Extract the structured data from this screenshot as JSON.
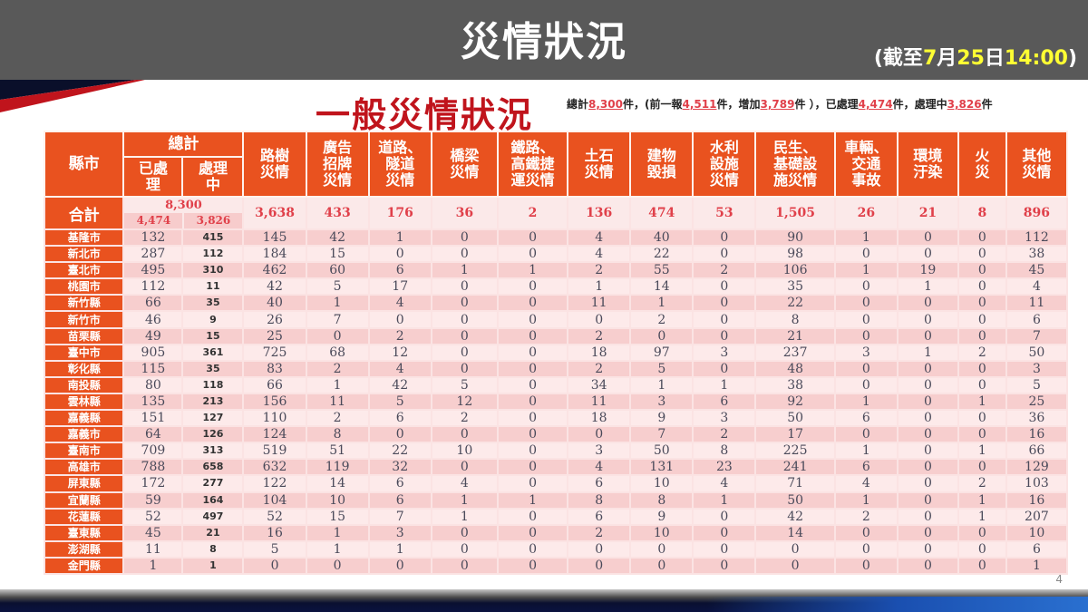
{
  "header": {
    "title": "災情狀況",
    "date_prefix": "(截至",
    "date_month": "7",
    "date_month_label": "月",
    "date_day": "25",
    "date_day_label": "日",
    "date_time": "14:00",
    "date_suffix": ")"
  },
  "subtitle": "一般災情狀況",
  "summary": {
    "total_label": "總計",
    "total": "8,300",
    "unit": "件",
    "prev_label": "，(前一報",
    "prev": "4,511",
    "increase_label": "件，增加",
    "increase": "3,789",
    "close_paren": "件 ），已處理",
    "processed": "4,474",
    "processing_label": "件，處理中",
    "processing": "3,826",
    "end": "件"
  },
  "table": {
    "headers": {
      "county": "縣市",
      "total_group": "總計",
      "processed": [
        "已處",
        "理"
      ],
      "processing": [
        "處理",
        "中"
      ],
      "columns": [
        [
          "路樹",
          "災情"
        ],
        [
          "廣告",
          "招牌",
          "災情"
        ],
        [
          "道路、",
          "隧道",
          "災情"
        ],
        [
          "橋梁",
          "災情"
        ],
        [
          "鐵路、",
          "高鐵捷",
          "運災情"
        ],
        [
          "土石",
          "災情"
        ],
        [
          "建物",
          "毀損"
        ],
        [
          "水利",
          "設施",
          "災情"
        ],
        [
          "民生、",
          "基礎設",
          "施災情"
        ],
        [
          "車輛、",
          "交通",
          "事故"
        ],
        [
          "環境",
          "汙染"
        ],
        [
          "火",
          "災"
        ],
        [
          "其他",
          "災情"
        ]
      ]
    },
    "total_row": {
      "label": "合計",
      "grand_total": "8,300",
      "processed": "4,474",
      "processing": "3,826",
      "values": [
        "3,638",
        "433",
        "176",
        "36",
        "2",
        "136",
        "474",
        "53",
        "1,505",
        "26",
        "21",
        "8",
        "896"
      ]
    },
    "rows": [
      {
        "county": "基隆市",
        "processed": "132",
        "processing": "415",
        "values": [
          "145",
          "42",
          "1",
          "0",
          "0",
          "4",
          "40",
          "0",
          "90",
          "1",
          "0",
          "0",
          "112"
        ]
      },
      {
        "county": "新北市",
        "processed": "287",
        "processing": "112",
        "values": [
          "184",
          "15",
          "0",
          "0",
          "0",
          "4",
          "22",
          "0",
          "98",
          "0",
          "0",
          "0",
          "38"
        ]
      },
      {
        "county": "臺北市",
        "processed": "495",
        "processing": "310",
        "values": [
          "462",
          "60",
          "6",
          "1",
          "1",
          "2",
          "55",
          "2",
          "106",
          "1",
          "19",
          "0",
          "45"
        ]
      },
      {
        "county": "桃園市",
        "processed": "112",
        "processing": "11",
        "values": [
          "42",
          "5",
          "17",
          "0",
          "0",
          "1",
          "14",
          "0",
          "35",
          "0",
          "1",
          "0",
          "4"
        ]
      },
      {
        "county": "新竹縣",
        "processed": "66",
        "processing": "35",
        "values": [
          "40",
          "1",
          "4",
          "0",
          "0",
          "11",
          "1",
          "0",
          "22",
          "0",
          "0",
          "0",
          "11"
        ]
      },
      {
        "county": "新竹市",
        "processed": "46",
        "processing": "9",
        "values": [
          "26",
          "7",
          "0",
          "0",
          "0",
          "0",
          "2",
          "0",
          "8",
          "0",
          "0",
          "0",
          "6"
        ]
      },
      {
        "county": "苗栗縣",
        "processed": "49",
        "processing": "15",
        "values": [
          "25",
          "0",
          "2",
          "0",
          "0",
          "2",
          "0",
          "0",
          "21",
          "0",
          "0",
          "0",
          "7"
        ]
      },
      {
        "county": "臺中市",
        "processed": "905",
        "processing": "361",
        "values": [
          "725",
          "68",
          "12",
          "0",
          "0",
          "18",
          "97",
          "3",
          "237",
          "3",
          "1",
          "2",
          "50"
        ]
      },
      {
        "county": "彰化縣",
        "processed": "115",
        "processing": "35",
        "values": [
          "83",
          "2",
          "4",
          "0",
          "0",
          "2",
          "5",
          "0",
          "48",
          "0",
          "0",
          "0",
          "3"
        ]
      },
      {
        "county": "南投縣",
        "processed": "80",
        "processing": "118",
        "values": [
          "66",
          "1",
          "42",
          "5",
          "0",
          "34",
          "1",
          "1",
          "38",
          "0",
          "0",
          "0",
          "5"
        ]
      },
      {
        "county": "雲林縣",
        "processed": "135",
        "processing": "213",
        "values": [
          "156",
          "11",
          "5",
          "12",
          "0",
          "11",
          "3",
          "6",
          "92",
          "1",
          "0",
          "1",
          "25"
        ]
      },
      {
        "county": "嘉義縣",
        "processed": "151",
        "processing": "127",
        "values": [
          "110",
          "2",
          "6",
          "2",
          "0",
          "18",
          "9",
          "3",
          "50",
          "6",
          "0",
          "0",
          "36"
        ]
      },
      {
        "county": "嘉義市",
        "processed": "64",
        "processing": "126",
        "values": [
          "124",
          "8",
          "0",
          "0",
          "0",
          "0",
          "7",
          "2",
          "17",
          "0",
          "0",
          "0",
          "16"
        ]
      },
      {
        "county": "臺南市",
        "processed": "709",
        "processing": "313",
        "values": [
          "519",
          "51",
          "22",
          "10",
          "0",
          "3",
          "50",
          "8",
          "225",
          "1",
          "0",
          "1",
          "66"
        ]
      },
      {
        "county": "高雄市",
        "processed": "788",
        "processing": "658",
        "values": [
          "632",
          "119",
          "32",
          "0",
          "0",
          "4",
          "131",
          "23",
          "241",
          "6",
          "0",
          "0",
          "129"
        ]
      },
      {
        "county": "屏東縣",
        "processed": "172",
        "processing": "277",
        "values": [
          "122",
          "14",
          "6",
          "4",
          "0",
          "6",
          "10",
          "4",
          "71",
          "4",
          "0",
          "2",
          "103"
        ]
      },
      {
        "county": "宜蘭縣",
        "processed": "59",
        "processing": "164",
        "values": [
          "104",
          "10",
          "6",
          "1",
          "1",
          "8",
          "8",
          "1",
          "50",
          "1",
          "0",
          "1",
          "16"
        ]
      },
      {
        "county": "花蓮縣",
        "processed": "52",
        "processing": "497",
        "values": [
          "52",
          "15",
          "7",
          "1",
          "0",
          "6",
          "9",
          "0",
          "42",
          "2",
          "0",
          "1",
          "207"
        ]
      },
      {
        "county": "臺東縣",
        "processed": "45",
        "processing": "21",
        "values": [
          "16",
          "1",
          "3",
          "0",
          "0",
          "2",
          "10",
          "0",
          "14",
          "0",
          "0",
          "0",
          "10"
        ]
      },
      {
        "county": "澎湖縣",
        "processed": "11",
        "processing": "8",
        "values": [
          "5",
          "1",
          "1",
          "0",
          "0",
          "0",
          "0",
          "0",
          "0",
          "0",
          "0",
          "0",
          "6"
        ]
      },
      {
        "county": "金門縣",
        "processed": "1",
        "processing": "1",
        "values": [
          "0",
          "0",
          "0",
          "0",
          "0",
          "0",
          "0",
          "0",
          "0",
          "0",
          "0",
          "0",
          "1"
        ]
      }
    ]
  },
  "footer": {
    "page_number": "4"
  },
  "colors": {
    "header_bg": "#595959",
    "accent_orange": "#e9521f",
    "subtitle_red": "#c0141c",
    "highlight_yellow": "#ffff33",
    "total_text_red": "#e0404a",
    "row_light": "#fdeaea",
    "row_dark": "#f7cece"
  }
}
